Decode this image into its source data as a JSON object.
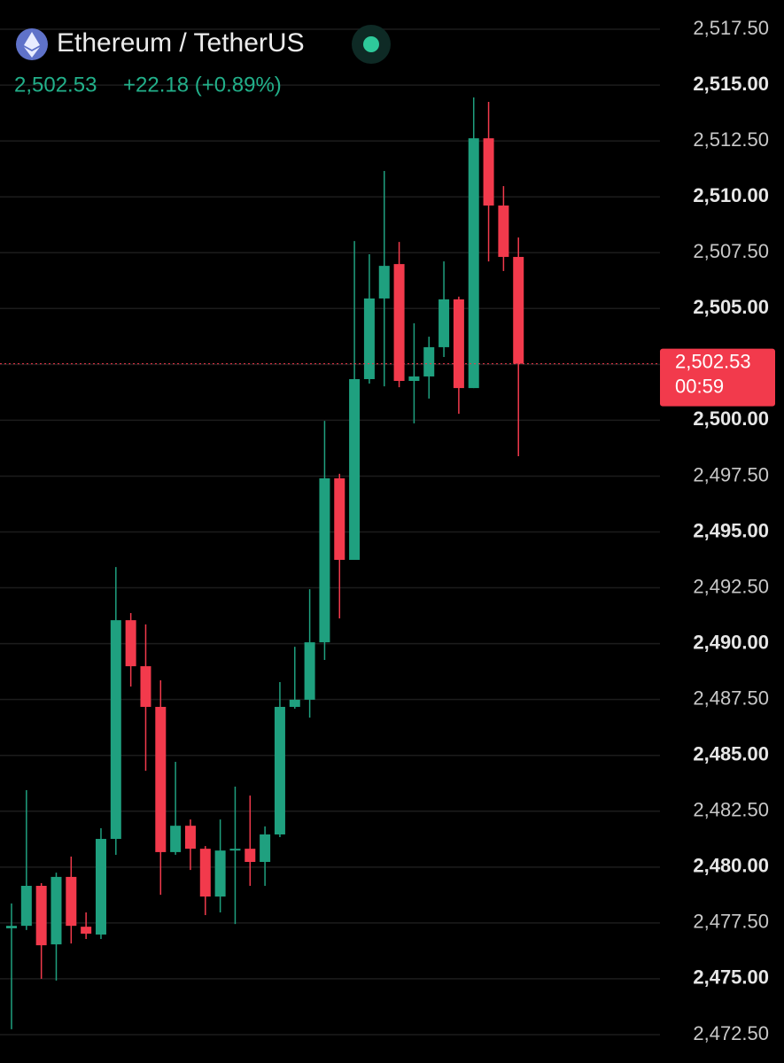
{
  "header": {
    "title": "Ethereum / TetherUS",
    "price": "2,502.53",
    "change": "+22.18 (+0.89%)"
  },
  "chart_data": {
    "type": "candlestick",
    "up_color": "#1fa07f",
    "down_color": "#f23a4c",
    "last_price": 2502.53,
    "last_price_label": "2,502.53",
    "countdown": "00:59",
    "ylim": [
      2471.23,
      2518.81
    ],
    "yticks": [
      {
        "value": 2472.5,
        "label": "2,472.50"
      },
      {
        "value": 2475,
        "label": "2,475.00"
      },
      {
        "value": 2477.5,
        "label": "2,477.50"
      },
      {
        "value": 2480,
        "label": "2,480.00"
      },
      {
        "value": 2482.5,
        "label": "2,482.50"
      },
      {
        "value": 2485,
        "label": "2,485.00"
      },
      {
        "value": 2487.5,
        "label": "2,487.50"
      },
      {
        "value": 2490,
        "label": "2,490.00"
      },
      {
        "value": 2492.5,
        "label": "2,492.50"
      },
      {
        "value": 2495,
        "label": "2,495.00"
      },
      {
        "value": 2497.5,
        "label": "2,497.50"
      },
      {
        "value": 2500,
        "label": "2,500.00"
      },
      {
        "value": 2502.5,
        "label": "2,502.50"
      },
      {
        "value": 2505,
        "label": "2,505.00"
      },
      {
        "value": 2507.5,
        "label": "2,507.50"
      },
      {
        "value": 2510,
        "label": "2,510.00"
      },
      {
        "value": 2512.5,
        "label": "2,512.50"
      },
      {
        "value": 2515,
        "label": "2,515.00"
      },
      {
        "value": 2517.5,
        "label": "2,517.50"
      }
    ],
    "grid": true,
    "open": [
      2477.26,
      2477.37,
      2479.16,
      2476.54,
      2479.56,
      2477.33,
      2476.98,
      2481.26,
      2491.05,
      2488.99,
      2487.17,
      2480.67,
      2481.85,
      2480.82,
      2478.68,
      2480.74,
      2480.82,
      2480.23,
      2481.46,
      2487.17,
      2487.49,
      2490.06,
      2497.4,
      2493.75,
      2501.84,
      2505.45,
      2506.99,
      2501.76,
      2501.96,
      2503.27,
      2505.41,
      2501.44,
      2512.62,
      2509.61,
      2507.31
    ],
    "close": [
      2477.37,
      2479.16,
      2476.5,
      2479.56,
      2477.37,
      2477.02,
      2481.26,
      2491.05,
      2488.99,
      2487.17,
      2480.67,
      2481.85,
      2480.82,
      2478.68,
      2480.74,
      2480.82,
      2480.23,
      2481.46,
      2487.17,
      2487.49,
      2490.06,
      2497.4,
      2493.75,
      2501.84,
      2505.45,
      2506.91,
      2501.76,
      2501.96,
      2503.27,
      2505.41,
      2501.44,
      2512.62,
      2509.61,
      2507.31,
      2502.53
    ],
    "high": [
      2478.37,
      2483.44,
      2479.28,
      2479.75,
      2480.47,
      2477.97,
      2481.74,
      2493.43,
      2491.37,
      2490.86,
      2488.36,
      2484.71,
      2482.13,
      2480.94,
      2482.13,
      2483.6,
      2483.2,
      2481.82,
      2488.28,
      2489.86,
      2492.44,
      2499.97,
      2497.6,
      2508.02,
      2507.43,
      2511.16,
      2507.98,
      2504.34,
      2503.74,
      2507.11,
      2505.53,
      2514.45,
      2514.25,
      2510.48,
      2508.18
    ],
    "low": [
      2472.74,
      2477.18,
      2475.0,
      2474.92,
      2476.58,
      2476.78,
      2476.78,
      2480.55,
      2488.08,
      2484.31,
      2478.76,
      2480.55,
      2479.87,
      2477.85,
      2477.97,
      2477.45,
      2479.16,
      2479.16,
      2481.34,
      2487.09,
      2486.69,
      2489.27,
      2491.13,
      2493.75,
      2501.64,
      2501.52,
      2501.48,
      2499.86,
      2500.97,
      2502.83,
      2500.29,
      2501.44,
      2507.11,
      2506.68,
      2498.39
    ]
  }
}
